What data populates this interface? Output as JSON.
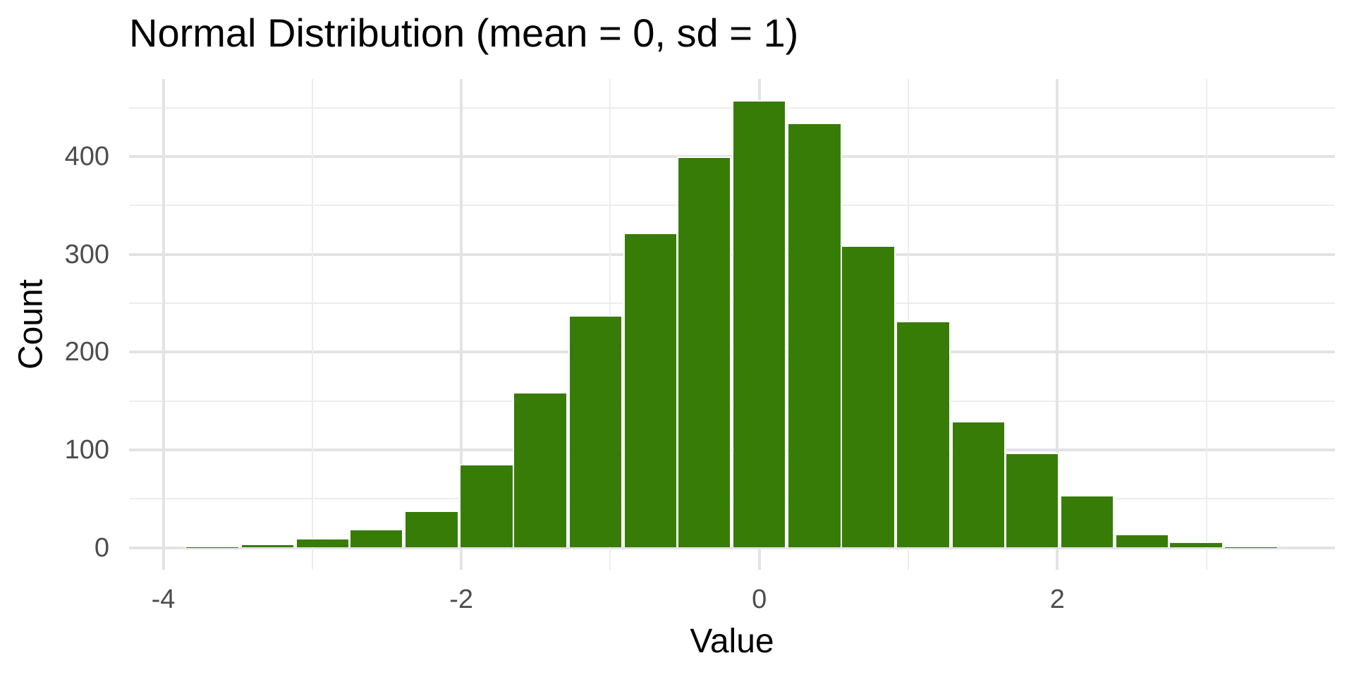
{
  "chart_data": {
    "type": "bar",
    "subtype": "histogram",
    "title": "Normal Distribution (mean = 0, sd = 1)",
    "xlabel": "Value",
    "ylabel": "Count",
    "x_major_ticks": [
      -4,
      -2,
      0,
      2
    ],
    "x_tick_labels": [
      "-4",
      "-2",
      "0",
      "2"
    ],
    "x_minor_gridlines": [
      -3,
      -1,
      1,
      3
    ],
    "y_major_ticks": [
      0,
      100,
      200,
      300,
      400
    ],
    "y_tick_labels": [
      "0",
      "100",
      "200",
      "300",
      "400"
    ],
    "y_minor_gridlines": [
      50,
      150,
      250,
      350,
      450
    ],
    "xlim": [
      -4.23,
      3.86
    ],
    "ylim": [
      -23,
      479
    ],
    "binwidth": 0.3667,
    "legend_position": "none",
    "grid": "major and minor, light gray on white",
    "colors": {
      "bar_fill": "#377c07",
      "bar_outline": "#ffffff",
      "grid_major": "#e3e3e3",
      "grid_minor": "#ededed",
      "tick_label": "#4d4d4d",
      "title_text": "#000000"
    },
    "bins": [
      {
        "center": -3.67,
        "count": 0
      },
      {
        "center": -3.3,
        "count": 2
      },
      {
        "center": -2.93,
        "count": 8
      },
      {
        "center": -2.57,
        "count": 17
      },
      {
        "center": -2.2,
        "count": 36
      },
      {
        "center": -1.83,
        "count": 84
      },
      {
        "center": -1.47,
        "count": 157
      },
      {
        "center": -1.1,
        "count": 236
      },
      {
        "center": -0.73,
        "count": 320
      },
      {
        "center": -0.37,
        "count": 398
      },
      {
        "center": 0.0,
        "count": 456
      },
      {
        "center": 0.37,
        "count": 433
      },
      {
        "center": 0.73,
        "count": 307
      },
      {
        "center": 1.1,
        "count": 230
      },
      {
        "center": 1.47,
        "count": 128
      },
      {
        "center": 1.83,
        "count": 95
      },
      {
        "center": 2.2,
        "count": 52
      },
      {
        "center": 2.57,
        "count": 12
      },
      {
        "center": 2.93,
        "count": 4
      },
      {
        "center": 3.3,
        "count": 0
      }
    ]
  }
}
